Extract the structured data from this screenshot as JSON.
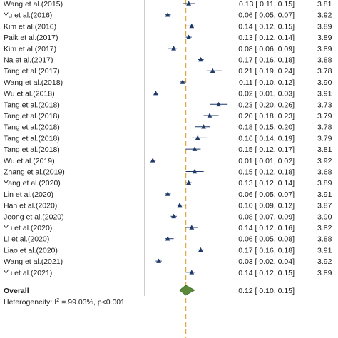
{
  "chart_data": {
    "type": "forest",
    "axis_range": [
      -0.05,
      0.3
    ],
    "reference_line": 0.12,
    "studies": [
      {
        "label": "Wang et al.(2015)",
        "est": 0.13,
        "lo": 0.11,
        "hi": 0.15,
        "weight": 3.81,
        "text": "0.13 [  0.11,  0.15]",
        "weight_text": "3.81"
      },
      {
        "label": "Yu et al.(2016)",
        "est": 0.06,
        "lo": 0.05,
        "hi": 0.07,
        "weight": 3.92,
        "text": "0.06 [  0.05,  0.07]",
        "weight_text": "3.92"
      },
      {
        "label": "Kim et al.(2016)",
        "est": 0.14,
        "lo": 0.12,
        "hi": 0.15,
        "weight": 3.89,
        "text": "0.14 [  0.12,  0.15]",
        "weight_text": "3.89"
      },
      {
        "label": "Paik et al.(2017)",
        "est": 0.13,
        "lo": 0.12,
        "hi": 0.14,
        "weight": 3.89,
        "text": "0.13 [  0.12,  0.14]",
        "weight_text": "3.89"
      },
      {
        "label": "Kim et al.(2017)",
        "est": 0.08,
        "lo": 0.06,
        "hi": 0.09,
        "weight": 3.89,
        "text": "0.08 [  0.06,  0.09]",
        "weight_text": "3.89"
      },
      {
        "label": "Na et al.(2017)",
        "est": 0.17,
        "lo": 0.16,
        "hi": 0.18,
        "weight": 3.88,
        "text": "0.17 [  0.16,  0.18]",
        "weight_text": "3.88"
      },
      {
        "label": "Tang et al.(2017)",
        "est": 0.21,
        "lo": 0.19,
        "hi": 0.24,
        "weight": 3.78,
        "text": "0.21 [  0.19,  0.24]",
        "weight_text": "3.78"
      },
      {
        "label": "Wang et al.(2018)",
        "est": 0.11,
        "lo": 0.1,
        "hi": 0.12,
        "weight": 3.9,
        "text": "0.11 [  0.10,  0.12]",
        "weight_text": "3.90"
      },
      {
        "label": "Wu et al.(2018)",
        "est": 0.02,
        "lo": 0.01,
        "hi": 0.03,
        "weight": 3.91,
        "text": "0.02 [  0.01,  0.03]",
        "weight_text": "3.91"
      },
      {
        "label": "Tang et al.(2018)",
        "est": 0.23,
        "lo": 0.2,
        "hi": 0.26,
        "weight": 3.73,
        "text": "0.23 [  0.20,  0.26]",
        "weight_text": "3.73"
      },
      {
        "label": "Tang et al.(2018)",
        "est": 0.2,
        "lo": 0.18,
        "hi": 0.23,
        "weight": 3.79,
        "text": "0.20 [  0.18,  0.23]",
        "weight_text": "3.79"
      },
      {
        "label": "Tang et al.(2018)",
        "est": 0.18,
        "lo": 0.15,
        "hi": 0.2,
        "weight": 3.78,
        "text": "0.18 [  0.15,  0.20]",
        "weight_text": "3.78"
      },
      {
        "label": "Tang et al.(2018)",
        "est": 0.16,
        "lo": 0.14,
        "hi": 0.19,
        "weight": 3.79,
        "text": "0.16 [  0.14,  0.19]",
        "weight_text": "3.79"
      },
      {
        "label": "Tang et al.(2018)",
        "est": 0.15,
        "lo": 0.12,
        "hi": 0.17,
        "weight": 3.81,
        "text": "0.15 [  0.12,  0.17]",
        "weight_text": "3.81"
      },
      {
        "label": "Wu et al.(2019)",
        "est": 0.01,
        "lo": 0.01,
        "hi": 0.02,
        "weight": 3.92,
        "text": "0.01 [  0.01,  0.02]",
        "weight_text": "3.92"
      },
      {
        "label": "Zhang et al.(2019)",
        "est": 0.15,
        "lo": 0.12,
        "hi": 0.18,
        "weight": 3.68,
        "text": "0.15 [  0.12,  0.18]",
        "weight_text": "3.68"
      },
      {
        "label": "Yang et al.(2020)",
        "est": 0.13,
        "lo": 0.12,
        "hi": 0.14,
        "weight": 3.89,
        "text": "0.13 [  0.12,  0.14]",
        "weight_text": "3.89"
      },
      {
        "label": "Lin et al.(2020)",
        "est": 0.06,
        "lo": 0.05,
        "hi": 0.07,
        "weight": 3.91,
        "text": "0.06 [  0.05,  0.07]",
        "weight_text": "3.91"
      },
      {
        "label": "Han et al.(2020)",
        "est": 0.1,
        "lo": 0.09,
        "hi": 0.12,
        "weight": 3.87,
        "text": "0.10 [  0.09,  0.12]",
        "weight_text": "3.87"
      },
      {
        "label": "Jeong et al.(2020)",
        "est": 0.08,
        "lo": 0.07,
        "hi": 0.09,
        "weight": 3.9,
        "text": "0.08 [  0.07,  0.09]",
        "weight_text": "3.90"
      },
      {
        "label": "Yu et al.(2020)",
        "est": 0.14,
        "lo": 0.12,
        "hi": 0.16,
        "weight": 3.82,
        "text": "0.14 [  0.12,  0.16]",
        "weight_text": "3.82"
      },
      {
        "label": "Li et al.(2020)",
        "est": 0.06,
        "lo": 0.05,
        "hi": 0.08,
        "weight": 3.88,
        "text": "0.06 [  0.05,  0.08]",
        "weight_text": "3.88"
      },
      {
        "label": "Liao et al.(2020)",
        "est": 0.17,
        "lo": 0.16,
        "hi": 0.18,
        "weight": 3.91,
        "text": "0.17 [  0.16,  0.18]",
        "weight_text": "3.91"
      },
      {
        "label": "Wang et al.(2021)",
        "est": 0.03,
        "lo": 0.02,
        "hi": 0.04,
        "weight": 3.92,
        "text": "0.03 [  0.02,  0.04]",
        "weight_text": "3.92"
      },
      {
        "label": "Yu et al.(2021)",
        "est": 0.14,
        "lo": 0.12,
        "hi": 0.15,
        "weight": 3.89,
        "text": "0.14 [  0.12,  0.15]",
        "weight_text": "3.89"
      }
    ],
    "overall": {
      "label": "Overall",
      "est": 0.12,
      "lo": 0.1,
      "hi": 0.15,
      "text": "0.12 [  0.10,  0.15]"
    },
    "heterogeneity": {
      "prefix": "Heterogeneity:  I",
      "sup": "2",
      "suffix": " = 99.03%, p<0.001"
    },
    "colors": {
      "marker": "#1f3a68",
      "ref_line": "#e0a640",
      "axis": "#999999",
      "diamond": "#5a8a3a",
      "diamond_edge": "#3d6a25"
    }
  }
}
